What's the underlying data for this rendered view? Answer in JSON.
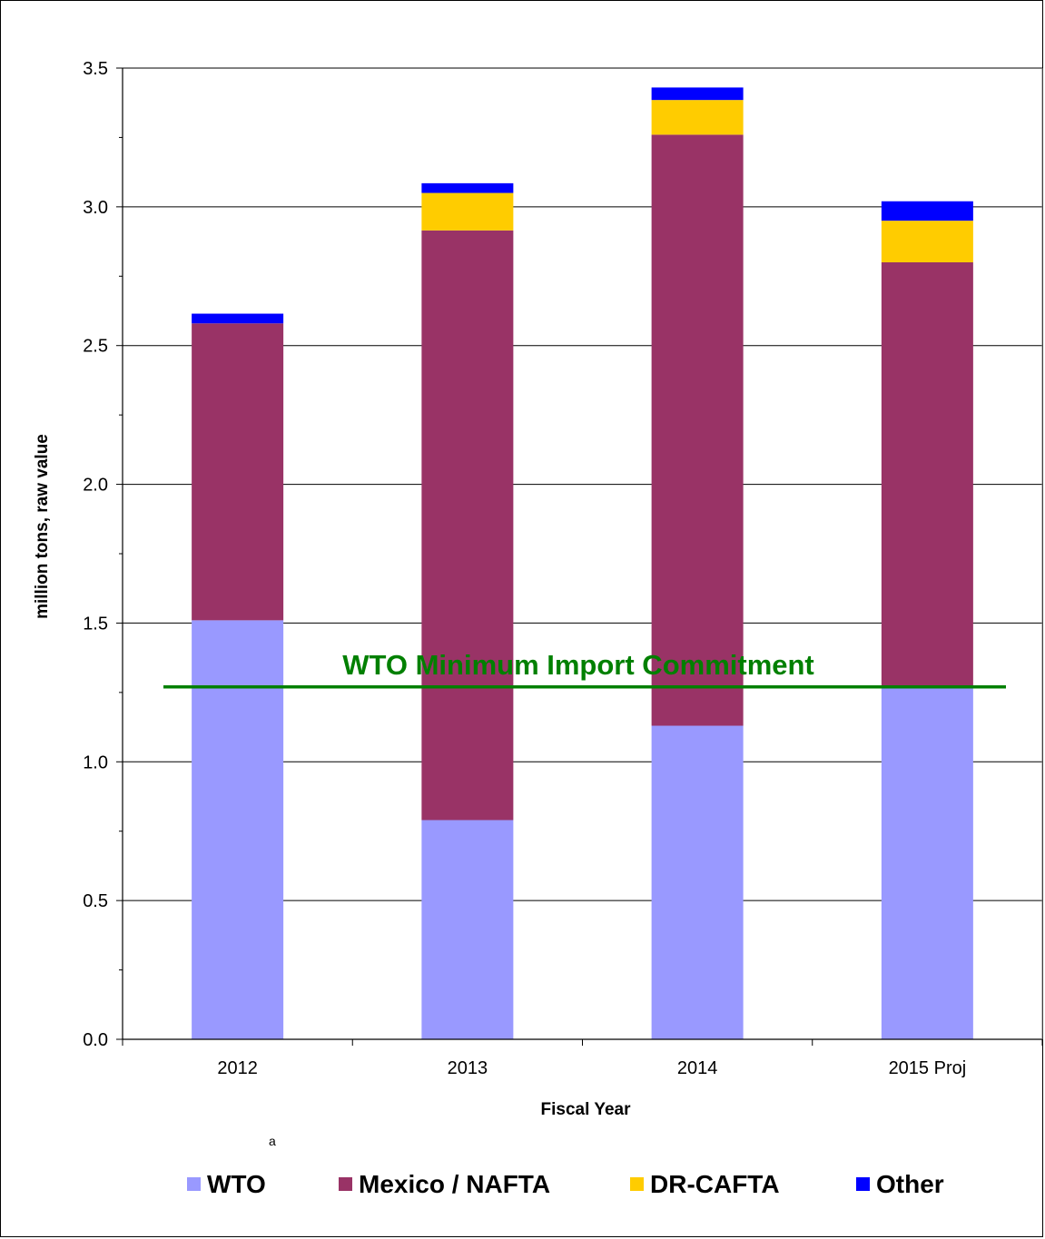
{
  "chart_data": {
    "type": "bar",
    "stacked": true,
    "categories": [
      "2012",
      "2013",
      "2014",
      "2015 Proj"
    ],
    "series": [
      {
        "name": "WTO",
        "values": [
          1.51,
          0.79,
          1.13,
          1.27
        ],
        "color": "#9999ff"
      },
      {
        "name": "Mexico / NAFTA",
        "values": [
          1.07,
          2.125,
          2.13,
          1.53
        ],
        "color": "#993366"
      },
      {
        "name": "DR-CAFTA",
        "values": [
          0.0,
          0.135,
          0.125,
          0.15
        ],
        "color": "#ffcc00"
      },
      {
        "name": "Other",
        "values": [
          0.035,
          0.035,
          0.045,
          0.07
        ],
        "color": "#0000ff"
      }
    ],
    "ylabel": "million tons, raw value",
    "xlabel": "Fiscal Year",
    "ylim": [
      0,
      3.5
    ],
    "yticks": [
      "0.0",
      "0.5",
      "1.0",
      "1.5",
      "2.0",
      "2.5",
      "3.0",
      "3.5"
    ],
    "grid": true,
    "legend_position": "bottom",
    "legend_superscript": "a",
    "reference_line": {
      "label": "WTO Minimum Import Commitment",
      "value": 1.27,
      "color": "#008000"
    }
  }
}
